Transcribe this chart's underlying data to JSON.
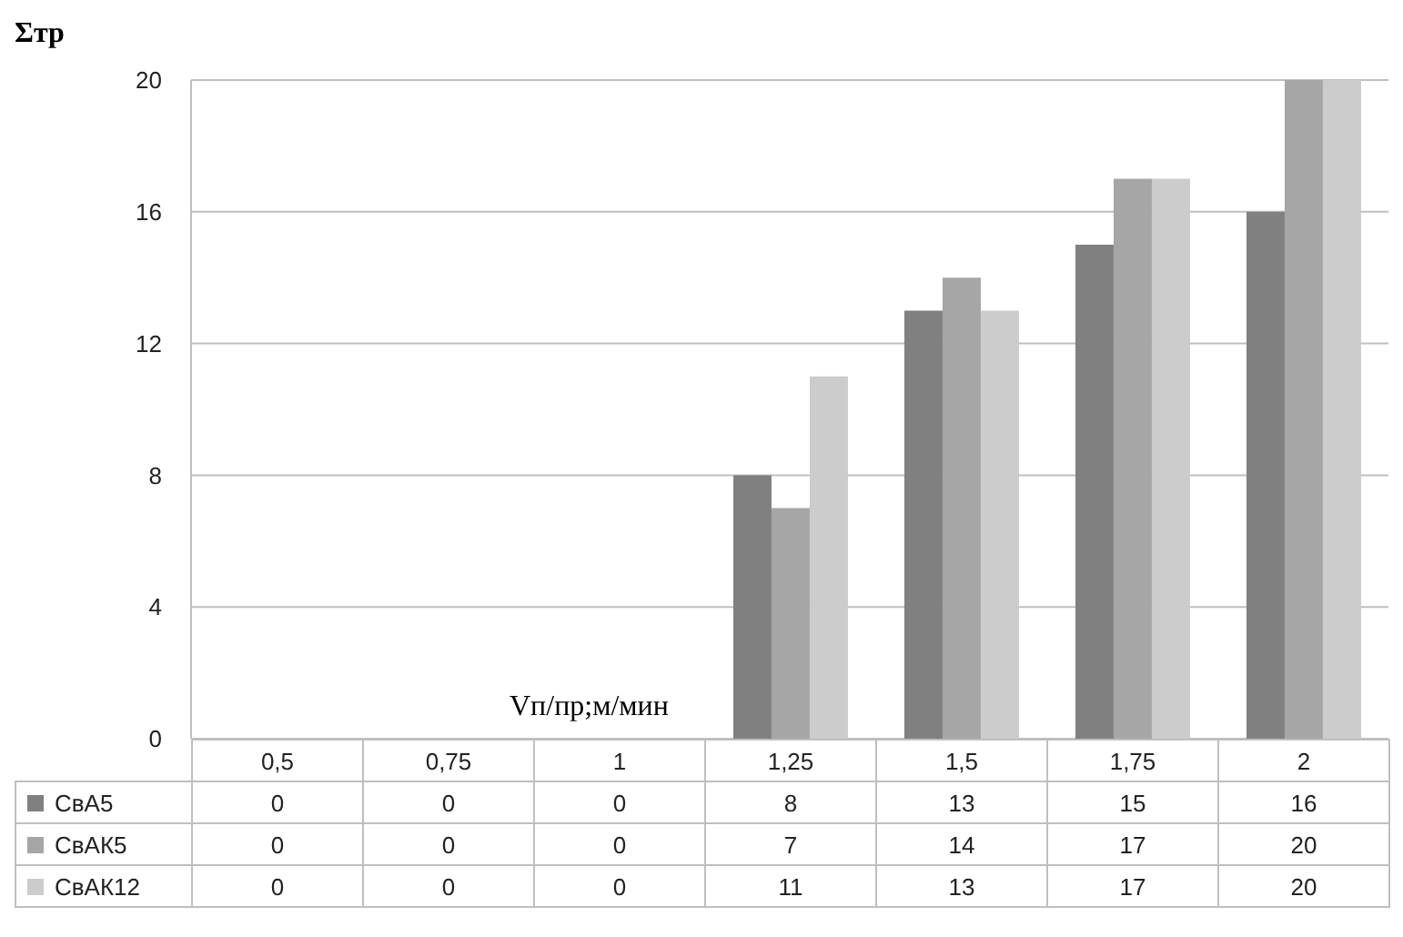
{
  "chart_data": {
    "type": "bar",
    "ylabel": "Σтр",
    "xlabel": "Vп/пр;м/мин",
    "categories": [
      "0,5",
      "0,75",
      "1",
      "1,25",
      "1,5",
      "1,75",
      "2"
    ],
    "series": [
      {
        "name": "СвА5",
        "color": "#808080",
        "values": [
          0,
          0,
          0,
          8,
          13,
          15,
          16
        ]
      },
      {
        "name": "СвАК5",
        "color": "#a6a6a6",
        "values": [
          0,
          0,
          0,
          7,
          14,
          17,
          20
        ]
      },
      {
        "name": "СвАК12",
        "color": "#cccccc",
        "values": [
          0,
          0,
          0,
          11,
          13,
          17,
          20
        ]
      }
    ],
    "ylim": [
      0,
      20
    ],
    "yticks": [
      0,
      4,
      8,
      12,
      16,
      20
    ],
    "grid": "y",
    "legend": "bottom",
    "data_labels": true
  }
}
